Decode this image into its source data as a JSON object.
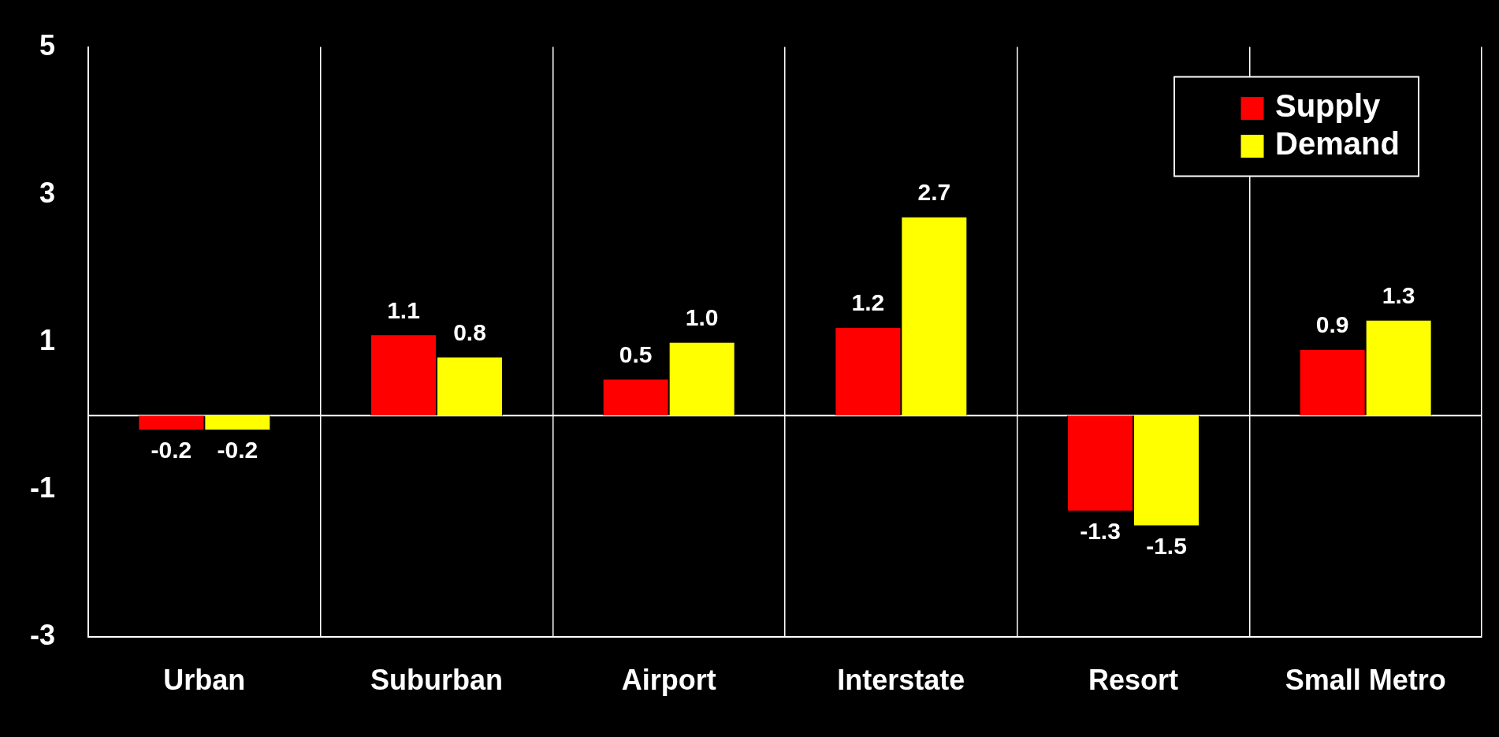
{
  "chart_data": {
    "type": "bar",
    "categories": [
      "Urban",
      "Suburban",
      "Airport",
      "Interstate",
      "Resort",
      "Small Metro"
    ],
    "series": [
      {
        "name": "Supply",
        "color": "#ff0000",
        "values": [
          -0.2,
          1.1,
          0.5,
          1.2,
          -1.3,
          0.9
        ],
        "value_labels": [
          "-0.2",
          "1.1",
          "0.5",
          "1.2",
          "-1.3",
          "0.9"
        ]
      },
      {
        "name": "Demand",
        "color": "#ffff00",
        "values": [
          -0.2,
          0.8,
          1.0,
          2.7,
          -1.5,
          1.3
        ],
        "value_labels": [
          "-0.2",
          "0.8",
          "1.0",
          "2.7",
          "-1.5",
          "1.3"
        ]
      }
    ],
    "ylim": [
      -3,
      5
    ],
    "yticks": [
      -3,
      -1,
      1,
      3,
      5
    ],
    "grid": "x",
    "legend": "top right",
    "ref_lines": [
      {
        "axis": "y",
        "value": 0
      }
    ]
  }
}
